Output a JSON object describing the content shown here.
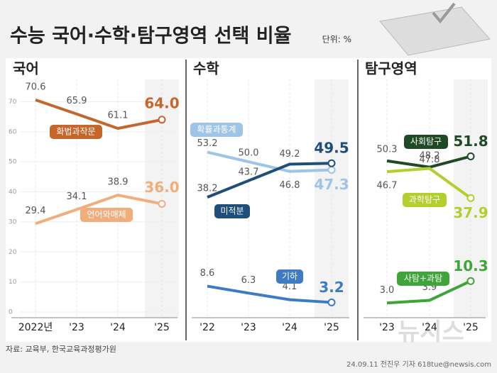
{
  "title": "수능 국어·수학·탐구영역 선택 비율",
  "unit": "단위: %",
  "source": "자료: 교육부, 한국교육과정평가원",
  "credit": "24.09.11 전진우 기자 618tue@newsis.com",
  "logo": "뉴시스",
  "chart_data": [
    {
      "type": "line",
      "title": "국어",
      "categories": [
        "2022년",
        "'23",
        "'24",
        "'25"
      ],
      "ylim": [
        0,
        80
      ],
      "yticks": [
        0,
        10,
        20,
        30,
        40,
        50,
        60,
        70
      ],
      "series": [
        {
          "name": "화법과작문",
          "color": "#c5662c",
          "values": [
            70.6,
            65.9,
            61.1,
            64.0
          ],
          "value_labels": [
            "70.6",
            "65.9",
            "61.1",
            "64.0"
          ]
        },
        {
          "name": "언어와매체",
          "color": "#f2ad7c",
          "values": [
            29.4,
            34.1,
            38.9,
            36.0
          ],
          "value_labels": [
            "29.4",
            "34.1",
            "38.9",
            "36.0"
          ]
        }
      ]
    },
    {
      "type": "line",
      "title": "수학",
      "categories": [
        "'22",
        "'23",
        "'24",
        "'25"
      ],
      "ylim": [
        0,
        80
      ],
      "series": [
        {
          "name": "확률과통계",
          "color": "#9ec5e8",
          "values": [
            53.2,
            50.0,
            46.8,
            47.3
          ],
          "value_labels": [
            "53.2",
            "50.0",
            "46.8",
            "47.3"
          ]
        },
        {
          "name": "미적분",
          "color": "#1f4e79",
          "values": [
            38.2,
            43.7,
            49.2,
            49.5
          ],
          "value_labels": [
            "38.2",
            "43.7",
            "49.2",
            "49.5"
          ]
        },
        {
          "name": "기하",
          "color": "#3d7cc4",
          "values": [
            8.6,
            6.3,
            4.1,
            3.2
          ],
          "value_labels": [
            "8.6",
            "6.3",
            "4.1",
            "3.2"
          ]
        }
      ]
    },
    {
      "type": "line",
      "title": "탐구영역",
      "categories": [
        "'23",
        "'24",
        "'25"
      ],
      "ylim": [
        0,
        80
      ],
      "series": [
        {
          "name": "사회탐구",
          "color": "#1f4a26",
          "values": [
            50.3,
            48.2,
            51.8
          ],
          "value_labels": [
            "50.3",
            "48.2",
            "51.8"
          ]
        },
        {
          "name": "과학탐구",
          "color": "#b3cf2e",
          "values": [
            46.7,
            47.8,
            37.9
          ],
          "value_labels": [
            "46.7",
            "47.8",
            "37.9"
          ]
        },
        {
          "name": "사탐+과탐",
          "color": "#3fa53a",
          "values": [
            3.0,
            3.9,
            10.3
          ],
          "value_labels": [
            "3.0",
            "3.9",
            "10.3"
          ]
        }
      ]
    }
  ]
}
